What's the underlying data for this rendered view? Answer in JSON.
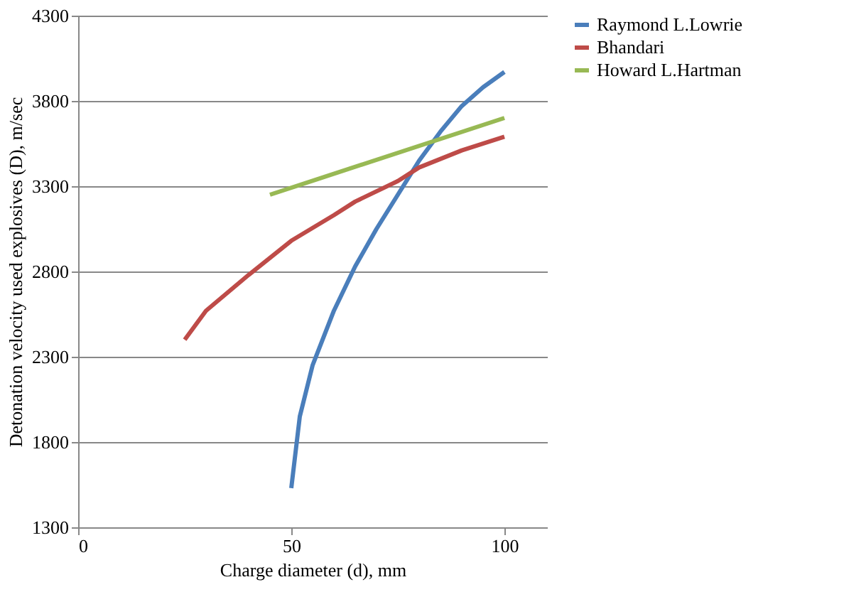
{
  "chart_data": {
    "type": "line",
    "xlabel": "Charge diameter (d), mm",
    "ylabel": "Detonation velocity used explosives (D), m/sec",
    "xlim": [
      0,
      110
    ],
    "xticks": [
      0,
      50,
      100
    ],
    "ylim": [
      1300,
      4300
    ],
    "yticks": [
      1300,
      1800,
      2300,
      2800,
      3300,
      3800,
      4300
    ],
    "grid": "y",
    "legend": "right",
    "marker": "none",
    "line_style": "solid",
    "series": [
      {
        "name": "Raymond L.Lowrie",
        "color": "#4a7ebb",
        "x": [
          50,
          52,
          55,
          60,
          65,
          70,
          75,
          80,
          85,
          90,
          95,
          100
        ],
        "values": [
          1530,
          1950,
          2250,
          2570,
          2830,
          3050,
          3250,
          3450,
          3620,
          3770,
          3880,
          3970
        ]
      },
      {
        "name": "Bhandari",
        "color": "#be4b48",
        "x": [
          25,
          30,
          40,
          50,
          60,
          65,
          75,
          80,
          90,
          100
        ],
        "values": [
          2400,
          2570,
          2780,
          2980,
          3130,
          3210,
          3330,
          3410,
          3510,
          3590
        ]
      },
      {
        "name": "Howard L.Hartman",
        "color": "#98b954",
        "x": [
          45,
          100
        ],
        "values": [
          3250,
          3700
        ]
      }
    ]
  }
}
